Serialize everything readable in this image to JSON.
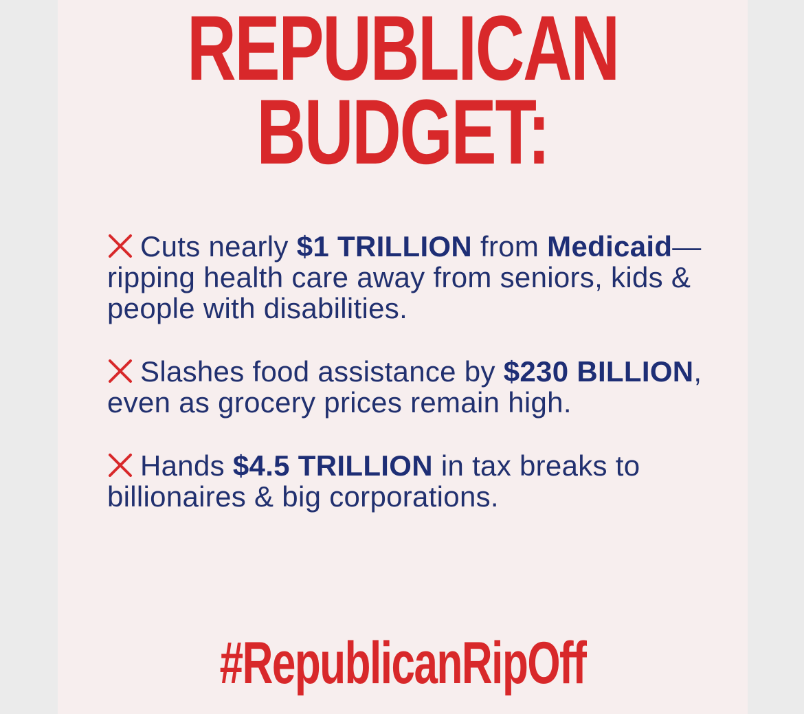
{
  "headline": {
    "line1": "REPUBLICAN",
    "line2": "BUDGET:"
  },
  "bullets": [
    {
      "icon": "x-mark-icon",
      "segments": [
        {
          "text": "Cuts nearly ",
          "bold": false
        },
        {
          "text": "$1 TRILLION",
          "bold": true
        },
        {
          "text": " from ",
          "bold": false
        },
        {
          "text": "Medicaid",
          "bold": true
        },
        {
          "text": "—ripping health care away from seniors, kids & people with disabilities.",
          "bold": false
        }
      ]
    },
    {
      "icon": "x-mark-icon",
      "segments": [
        {
          "text": "Slashes food assistance by ",
          "bold": false
        },
        {
          "text": "$230 BILLION",
          "bold": true
        },
        {
          "text": ", even as grocery prices remain high.",
          "bold": false
        }
      ]
    },
    {
      "icon": "x-mark-icon",
      "segments": [
        {
          "text": "Hands ",
          "bold": false
        },
        {
          "text": "$4.5 TRILLION",
          "bold": true
        },
        {
          "text": " in tax breaks to billionaires & big corporations.",
          "bold": false
        }
      ]
    }
  ],
  "hashtag": "#RepublicanRipOff",
  "colors": {
    "accent_red": "#d8282a",
    "body_navy": "#21306f",
    "background": "#f7eeee"
  }
}
